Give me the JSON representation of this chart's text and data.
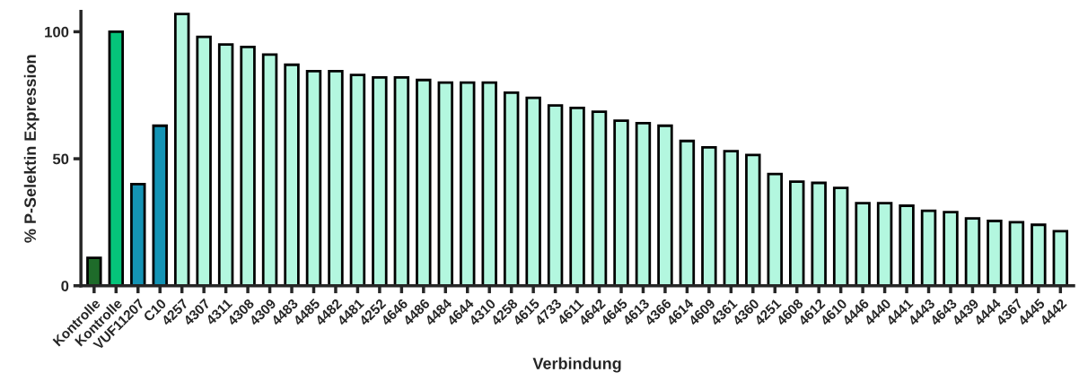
{
  "chart_data": {
    "type": "bar",
    "xlabel": "Verbindung",
    "ylabel": "% P-Selektin Expression",
    "categories": [
      "Kontrolle",
      "Kontrolle",
      "VUF11207",
      "C10",
      "4257",
      "4307",
      "4311",
      "4308",
      "4309",
      "4483",
      "4485",
      "4482",
      "4481",
      "4252",
      "4646",
      "4486",
      "4484",
      "4644",
      "4310",
      "4258",
      "4615",
      "4733",
      "4611",
      "4642",
      "4645",
      "4613",
      "4366",
      "4614",
      "4609",
      "4361",
      "4360",
      "4251",
      "4608",
      "4612",
      "4610",
      "4446",
      "4440",
      "4441",
      "4443",
      "4643",
      "4439",
      "4444",
      "4367",
      "4445",
      "4442"
    ],
    "values": [
      11,
      100,
      40,
      63,
      107,
      98,
      95,
      94,
      91,
      87,
      84.5,
      84.5,
      83,
      82,
      82,
      81,
      80,
      80,
      80,
      76,
      74,
      71,
      70,
      68.5,
      65,
      64,
      63,
      57,
      54.5,
      53,
      51.5,
      44,
      41,
      40.5,
      38.5,
      32.5,
      32.5,
      31.5,
      29.5,
      29,
      26.5,
      25.5,
      25,
      24,
      21.5
    ],
    "colors": [
      "#1e6b2a",
      "#05c47a",
      "#1493b4",
      "#1493b4",
      "#b3f7df",
      "#b3f7df",
      "#b3f7df",
      "#b3f7df",
      "#b3f7df",
      "#b3f7df",
      "#b3f7df",
      "#b3f7df",
      "#b3f7df",
      "#b3f7df",
      "#b3f7df",
      "#b3f7df",
      "#b3f7df",
      "#b3f7df",
      "#b3f7df",
      "#b3f7df",
      "#b3f7df",
      "#b3f7df",
      "#b3f7df",
      "#b3f7df",
      "#b3f7df",
      "#b3f7df",
      "#b3f7df",
      "#b3f7df",
      "#b3f7df",
      "#b3f7df",
      "#b3f7df",
      "#b3f7df",
      "#b3f7df",
      "#b3f7df",
      "#b3f7df",
      "#b3f7df",
      "#b3f7df",
      "#b3f7df",
      "#b3f7df",
      "#b3f7df",
      "#b3f7df",
      "#b3f7df",
      "#b3f7df",
      "#b3f7df",
      "#b3f7df"
    ],
    "ylim": [
      0,
      108
    ],
    "yticks": [
      0,
      50,
      100
    ],
    "grid": false,
    "legend": false
  }
}
